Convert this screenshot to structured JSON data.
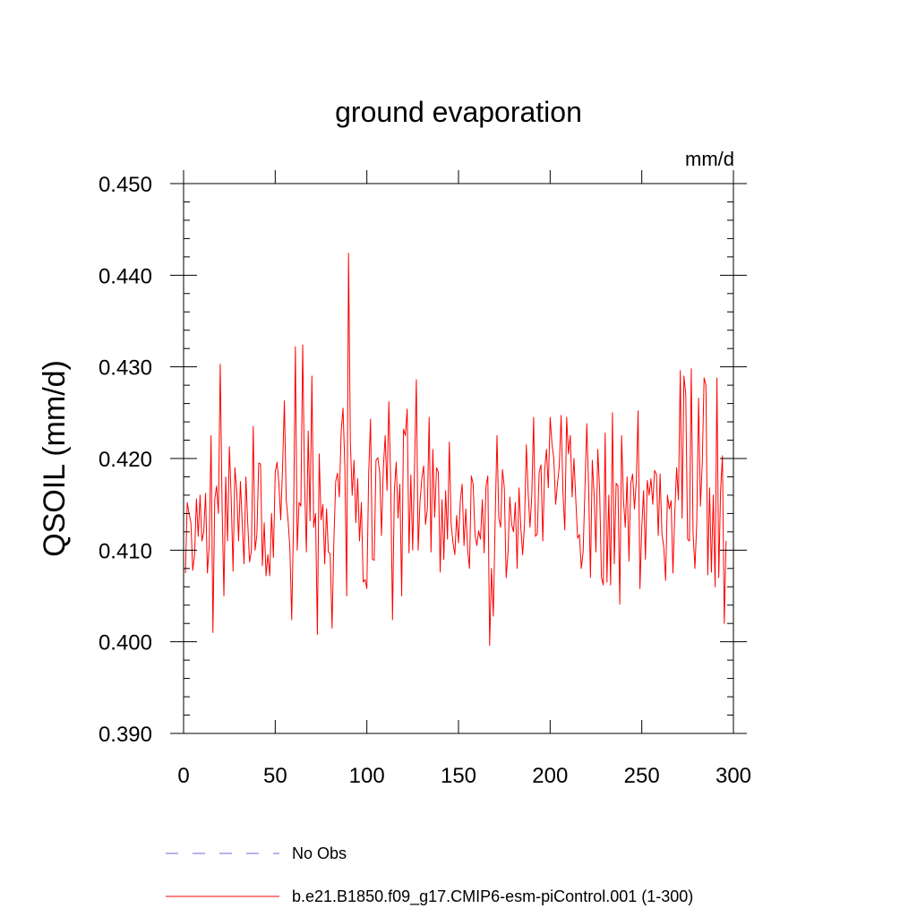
{
  "chart_data": {
    "type": "line",
    "title": "ground evaporation",
    "units": "mm/d",
    "xlabel": "",
    "ylabel": "QSOIL  (mm/d)",
    "xlim": [
      0,
      300
    ],
    "ylim": [
      0.39,
      0.45
    ],
    "xticks": [
      0,
      50,
      100,
      150,
      200,
      250,
      300
    ],
    "xtick_labels": [
      "0",
      "50",
      "100",
      "150",
      "200",
      "250",
      "300"
    ],
    "yticks": [
      0.39,
      0.4,
      0.41,
      0.42,
      0.43,
      0.44,
      0.45
    ],
    "ytick_labels": [
      "0.390",
      "0.400",
      "0.410",
      "0.420",
      "0.430",
      "0.440",
      "0.450"
    ],
    "grid": false,
    "series": [
      {
        "name": "No Obs",
        "color": "#6a6ad8",
        "style": "dashed",
        "values": []
      },
      {
        "name": "b.e21.B1850.f09_g17.CMIP6-esm-piControl.001 (1-300)",
        "color": "#ff0000",
        "style": "solid",
        "x_start": 1,
        "values": [
          0.4075,
          0.4152,
          0.414,
          0.413,
          0.4078,
          0.4095,
          0.4156,
          0.4115,
          0.416,
          0.411,
          0.412,
          0.4162,
          0.4075,
          0.4105,
          0.4225,
          0.401,
          0.4155,
          0.417,
          0.414,
          0.4303,
          0.415,
          0.405,
          0.418,
          0.411,
          0.4213,
          0.4155,
          0.4077,
          0.419,
          0.4165,
          0.411,
          0.4175,
          0.413,
          0.4085,
          0.418,
          0.413,
          0.4087,
          0.4099,
          0.4235,
          0.41,
          0.4117,
          0.4195,
          0.4194,
          0.4083,
          0.413,
          0.4072,
          0.4095,
          0.4072,
          0.414,
          0.4092,
          0.4185,
          0.4196,
          0.4173,
          0.4133,
          0.419,
          0.4263,
          0.4155,
          0.4133,
          0.4102,
          0.4024,
          0.413,
          0.4322,
          0.41,
          0.4152,
          0.4148,
          0.4324,
          0.4175,
          0.4098,
          0.423,
          0.4132,
          0.429,
          0.4125,
          0.414,
          0.4008,
          0.4205,
          0.4133,
          0.415,
          0.4085,
          0.4145,
          0.4098,
          0.4096,
          0.4015,
          0.411,
          0.4175,
          0.4184,
          0.4158,
          0.423,
          0.4255,
          0.419,
          0.405,
          0.4424,
          0.4218,
          0.416,
          0.4198,
          0.413,
          0.4178,
          0.411,
          0.4152,
          0.4065,
          0.4068,
          0.4058,
          0.4183,
          0.4243,
          0.409,
          0.4089,
          0.4198,
          0.4201,
          0.4185,
          0.4116,
          0.419,
          0.4225,
          0.4165,
          0.4262,
          0.4175,
          0.4024,
          0.4165,
          0.4196,
          0.4135,
          0.4172,
          0.405,
          0.4232,
          0.4225,
          0.4254,
          0.4097,
          0.4182,
          0.41,
          0.419,
          0.4286,
          0.41,
          0.4153,
          0.4178,
          0.4192,
          0.4128,
          0.4145,
          0.4245,
          0.4098,
          0.421,
          0.4136,
          0.419,
          0.4185,
          0.4076,
          0.4155,
          0.409,
          0.4165,
          0.4112,
          0.4218,
          0.4128,
          0.4108,
          0.4095,
          0.4138,
          0.4108,
          0.4154,
          0.4172,
          0.4105,
          0.4145,
          0.41,
          0.408,
          0.4181,
          0.4172,
          0.4117,
          0.4105,
          0.4121,
          0.4112,
          0.4155,
          0.4097,
          0.417,
          0.4181,
          0.3996,
          0.408,
          0.4028,
          0.4132,
          0.4225,
          0.4135,
          0.4125,
          0.4188,
          0.4168,
          0.407,
          0.4096,
          0.4158,
          0.4128,
          0.412,
          0.4152,
          0.408,
          0.4168,
          0.4125,
          0.4095,
          0.4127,
          0.4215,
          0.4163,
          0.4125,
          0.416,
          0.4245,
          0.4115,
          0.4118,
          0.4185,
          0.4193,
          0.411,
          0.4187,
          0.421,
          0.4168,
          0.4245,
          0.4216,
          0.42,
          0.415,
          0.4172,
          0.4192,
          0.4247,
          0.4162,
          0.4122,
          0.4245,
          0.4205,
          0.4225,
          0.4158,
          0.42,
          0.4155,
          0.4113,
          0.4117,
          0.408,
          0.4098,
          0.4168,
          0.4238,
          0.4168,
          0.407,
          0.4198,
          0.416,
          0.4098,
          0.421,
          0.4165,
          0.407,
          0.4062,
          0.4228,
          0.4065,
          0.416,
          0.4062,
          0.425,
          0.4085,
          0.4173,
          0.417,
          0.4041,
          0.4225,
          0.4155,
          0.4125,
          0.418,
          0.4088,
          0.4173,
          0.4183,
          0.4145,
          0.4175,
          0.4252,
          0.4058,
          0.4125,
          0.4165,
          0.409,
          0.4176,
          0.416,
          0.4178,
          0.415,
          0.4187,
          0.4183,
          0.4116,
          0.4183,
          0.4118,
          0.4103,
          0.4067,
          0.416,
          0.4145,
          0.4154,
          0.4075,
          0.414,
          0.419,
          0.4155,
          0.4296,
          0.4135,
          0.429,
          0.427,
          0.4112,
          0.411,
          0.4298,
          0.4118,
          0.408,
          0.413,
          0.4266,
          0.4148,
          0.4195,
          0.4288,
          0.428,
          0.4073,
          0.4168,
          0.4076,
          0.416,
          0.406,
          0.4288,
          0.407,
          0.4165,
          0.4203,
          0.402,
          0.411
        ]
      }
    ]
  },
  "legend": {
    "items": [
      {
        "label": "No Obs"
      },
      {
        "label": "b.e21.B1850.f09_g17.CMIP6-esm-piControl.001 (1-300)"
      }
    ]
  }
}
